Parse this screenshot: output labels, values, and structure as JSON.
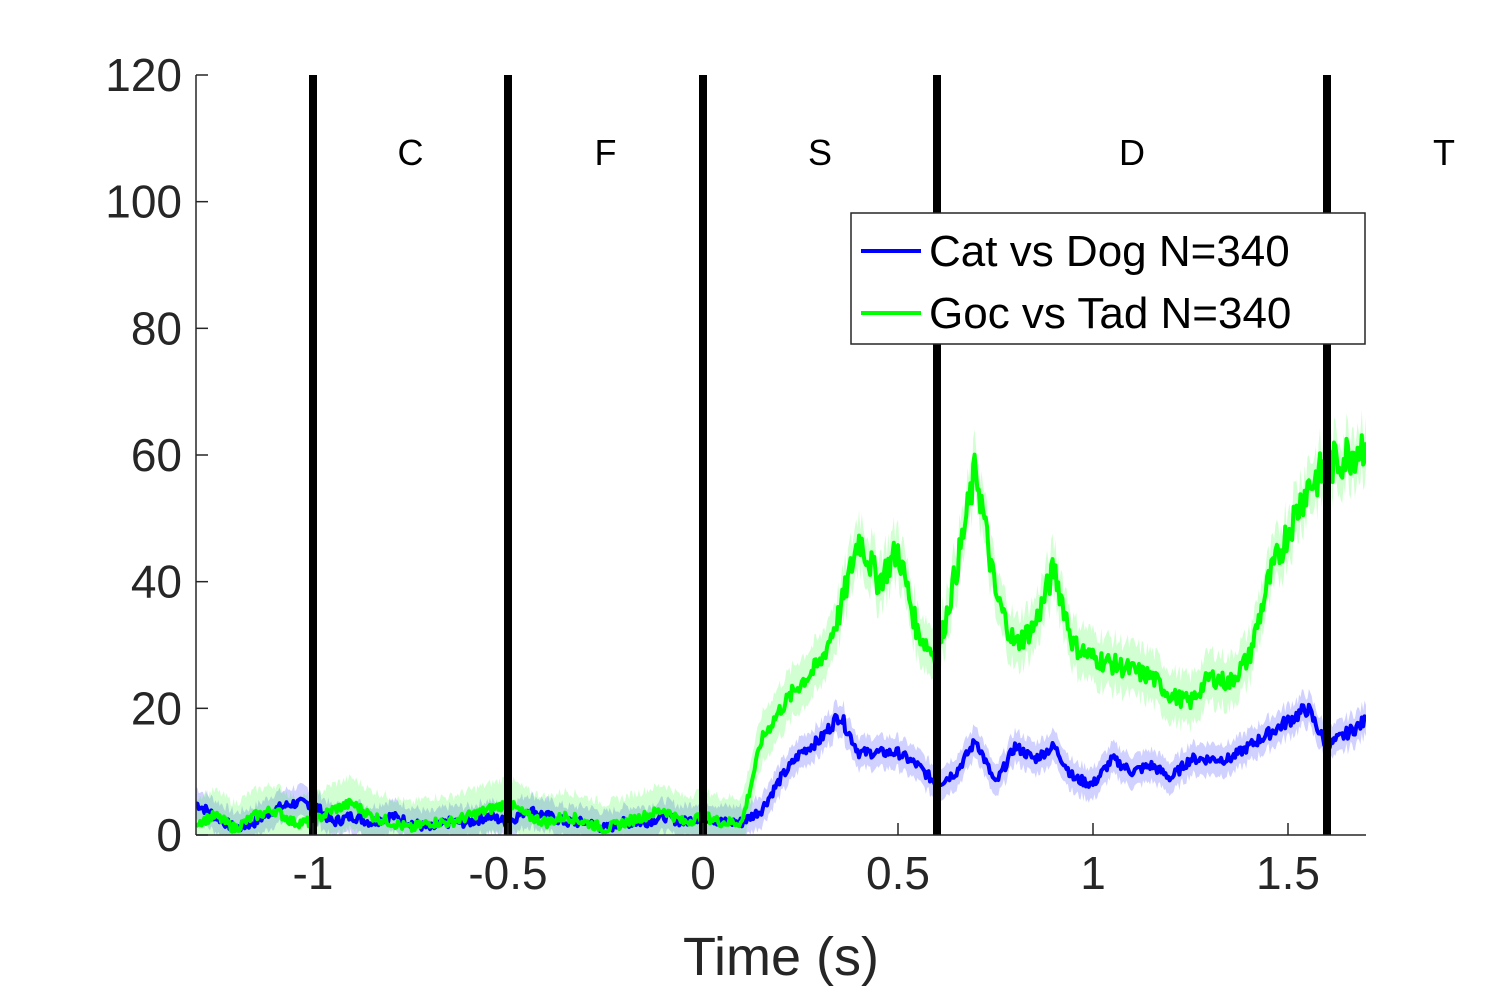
{
  "chart_data": {
    "type": "line",
    "title": "",
    "xlabel": "Time (s)",
    "ylabel": "",
    "xlim": [
      -1.3,
      1.7
    ],
    "ylim": [
      0,
      120
    ],
    "x_ticks": [
      -1,
      -0.5,
      0,
      0.5,
      1,
      1.5
    ],
    "x_tick_labels": [
      "-1",
      "-0.5",
      "0",
      "0.5",
      "1",
      "1.5"
    ],
    "y_ticks": [
      0,
      20,
      40,
      60,
      80,
      100,
      120
    ],
    "y_tick_labels": [
      "0",
      "20",
      "40",
      "60",
      "80",
      "100",
      "120"
    ],
    "grid": false,
    "legend_position": "top-right",
    "event_lines": [
      -1,
      -0.5,
      0,
      0.6,
      1.6
    ],
    "phase_labels": [
      {
        "x": -0.75,
        "text": "C"
      },
      {
        "x": -0.25,
        "text": "F"
      },
      {
        "x": 0.3,
        "text": "S"
      },
      {
        "x": 1.1,
        "text": "D"
      },
      {
        "x": 1.9,
        "text": "T"
      }
    ],
    "phase_label_y": 108,
    "series": [
      {
        "name": "Cat vs Dog N=340",
        "color": "#0000ff",
        "x": [
          -1.3,
          -1.25,
          -1.2,
          -1.15,
          -1.1,
          -1.05,
          -1.0,
          -0.95,
          -0.9,
          -0.85,
          -0.8,
          -0.75,
          -0.7,
          -0.65,
          -0.6,
          -0.55,
          -0.5,
          -0.45,
          -0.4,
          -0.35,
          -0.3,
          -0.25,
          -0.2,
          -0.15,
          -0.1,
          -0.05,
          0.0,
          0.05,
          0.1,
          0.15,
          0.2,
          0.25,
          0.3,
          0.35,
          0.4,
          0.45,
          0.5,
          0.55,
          0.6,
          0.65,
          0.7,
          0.75,
          0.8,
          0.85,
          0.9,
          0.95,
          1.0,
          1.05,
          1.1,
          1.15,
          1.2,
          1.25,
          1.3,
          1.35,
          1.4,
          1.45,
          1.5,
          1.55,
          1.6,
          1.65,
          1.7
        ],
        "values": [
          5,
          3,
          1,
          2,
          4,
          5,
          5,
          2,
          3,
          2,
          3,
          2,
          1,
          2,
          2,
          3,
          2,
          4,
          3,
          2,
          2,
          1,
          2,
          2,
          3,
          2,
          3,
          2,
          2,
          4,
          9,
          13,
          15,
          19,
          13,
          13,
          13,
          11,
          8,
          10,
          15,
          8,
          14,
          12,
          14,
          9,
          8,
          12,
          10,
          11,
          9,
          12,
          12,
          12,
          14,
          16,
          18,
          20,
          14,
          16,
          18
        ],
        "band": 2.5
      },
      {
        "name": "Goc vs Tad N=340",
        "color": "#00ff00",
        "x": [
          -1.3,
          -1.25,
          -1.2,
          -1.15,
          -1.1,
          -1.05,
          -1.0,
          -0.95,
          -0.9,
          -0.85,
          -0.8,
          -0.75,
          -0.7,
          -0.65,
          -0.6,
          -0.55,
          -0.5,
          -0.45,
          -0.4,
          -0.35,
          -0.3,
          -0.25,
          -0.2,
          -0.15,
          -0.1,
          -0.05,
          0.0,
          0.05,
          0.1,
          0.15,
          0.2,
          0.25,
          0.3,
          0.35,
          0.4,
          0.45,
          0.5,
          0.55,
          0.6,
          0.65,
          0.7,
          0.75,
          0.8,
          0.85,
          0.9,
          0.95,
          1.0,
          1.05,
          1.1,
          1.15,
          1.2,
          1.25,
          1.3,
          1.35,
          1.4,
          1.45,
          1.5,
          1.55,
          1.6,
          1.65,
          1.7
        ],
        "values": [
          2,
          3,
          1,
          3,
          4,
          2,
          2,
          4,
          5,
          3,
          2,
          1,
          2,
          2,
          3,
          4,
          5,
          3,
          2,
          3,
          2,
          1,
          2,
          3,
          4,
          2,
          3,
          2,
          2,
          15,
          20,
          24,
          27,
          35,
          47,
          40,
          45,
          32,
          28,
          42,
          58,
          38,
          30,
          33,
          42,
          30,
          28,
          27,
          26,
          25,
          22,
          21,
          25,
          24,
          28,
          40,
          48,
          55,
          58,
          60,
          62
        ],
        "band": 4
      }
    ]
  }
}
